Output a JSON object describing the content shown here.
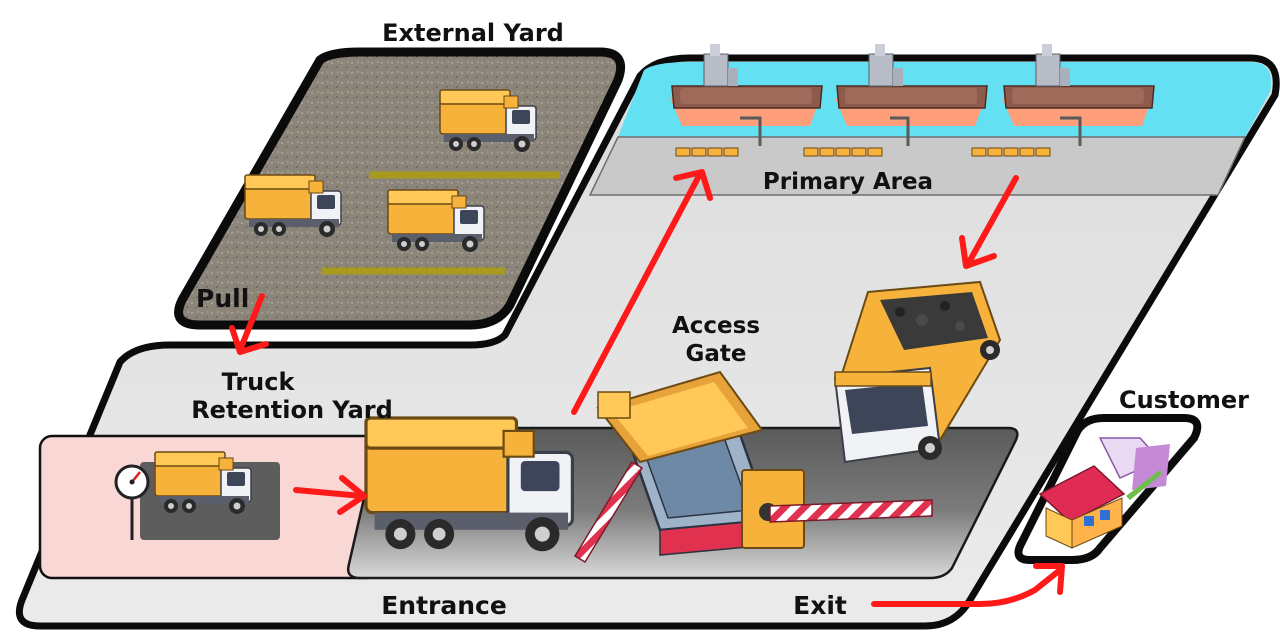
{
  "labels": {
    "external_yard": "External Yard",
    "primary_area": "Primary Area",
    "access_gate_line1": "Access",
    "access_gate_line2": "Gate",
    "truck_retention_line1": "Truck",
    "truck_retention_line2": "Retention Yard",
    "pull": "Pull",
    "entrance": "Entrance",
    "exit": "Exit",
    "customer": "Customer"
  },
  "colors": {
    "arrow": "#ff1a1a",
    "platform": "#e3e3e3",
    "water": "#63e0f2",
    "asphalt": "#8f877c",
    "retention_zone": "#f9d7d5",
    "truck_body": "#f7b23b",
    "truck_cab": "#f1f2f5",
    "road": "#606060",
    "outline": "#0b0b0b"
  },
  "icons": {
    "ship": "cargo-ship-icon",
    "truck": "dump-truck-icon",
    "gate": "gatehouse-icon",
    "barrier": "boom-barrier-icon",
    "scale": "weighing-scale-icon",
    "house": "house-icon"
  }
}
